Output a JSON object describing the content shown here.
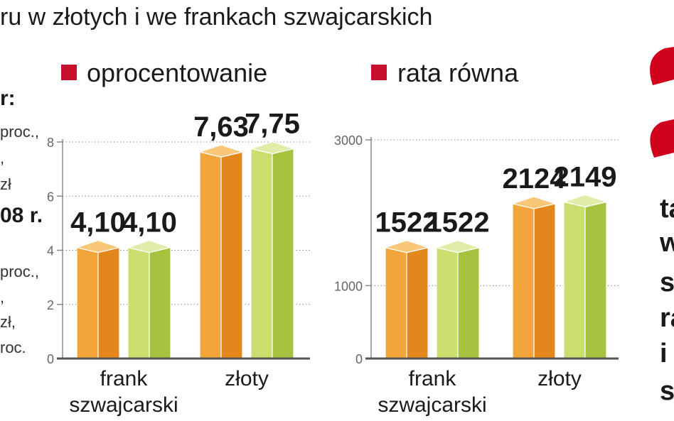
{
  "title": "ru w złotych i we frankach szwajcarskich",
  "legend": [
    {
      "label": "oprocentowanie",
      "color": "#c8102e"
    },
    {
      "label": "rata równa",
      "color": "#c8102e"
    }
  ],
  "colors": {
    "orange_front": "#f2a53a",
    "orange_side": "#e3861c",
    "orange_top": "#f8c878",
    "green_front": "#c9de6c",
    "green_side": "#a6c23f",
    "green_top": "#e0edaa",
    "grid": "#8a8a8a",
    "accent": "#d0021b"
  },
  "left_fragments": [
    {
      "text": "r:",
      "bold": true
    },
    {
      "text": "proc.,",
      "bold": false
    },
    {
      "text": ",",
      "bold": false
    },
    {
      "text": "zł",
      "bold": false
    },
    {
      "text": "08 r.",
      "bold": true
    },
    {
      "text": "proc.,",
      "bold": false
    },
    {
      "text": ",",
      "bold": false
    },
    {
      "text": "zł,",
      "bold": false
    },
    {
      "text": "roc.",
      "bold": false
    }
  ],
  "right_fragments": [
    "ta",
    "w",
    "s",
    "ra",
    "i",
    "s"
  ],
  "chart_data": [
    {
      "type": "bar",
      "title": "oprocentowanie",
      "categories": [
        "frank szwajcarski",
        "złoty"
      ],
      "category_lines": [
        [
          "frank",
          "szwajcarski"
        ],
        [
          "złoty"
        ]
      ],
      "series": [
        {
          "values": [
            4.1,
            7.63
          ],
          "labels": [
            "4,10",
            "7,63"
          ],
          "color": "orange"
        },
        {
          "values": [
            4.1,
            7.75
          ],
          "labels": [
            "4,10",
            "7,75"
          ],
          "color": "green"
        }
      ],
      "yticks": [
        0,
        2,
        4,
        6,
        8
      ],
      "ytick_labels": [
        "0",
        "2",
        "4",
        "6",
        "8"
      ],
      "ylim": [
        0,
        8
      ],
      "grid": true
    },
    {
      "type": "bar",
      "title": "rata równa",
      "categories": [
        "frank szwajcarski",
        "złoty"
      ],
      "category_lines": [
        [
          "frank",
          "szwajcarski"
        ],
        [
          "złoty"
        ]
      ],
      "series": [
        {
          "values": [
            1522,
            2124
          ],
          "labels": [
            "1522",
            "2124"
          ],
          "color": "orange"
        },
        {
          "values": [
            1522,
            2149
          ],
          "labels": [
            "1522",
            "2149"
          ],
          "color": "green"
        }
      ],
      "yticks": [
        0,
        1000,
        3000
      ],
      "ytick_labels": [
        "0",
        "1000",
        "3000"
      ],
      "ylim": [
        0,
        3000
      ],
      "grid": true
    }
  ]
}
